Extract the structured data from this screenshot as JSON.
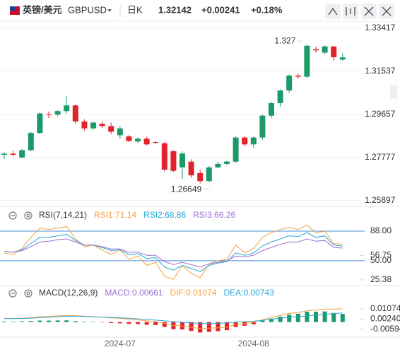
{
  "header": {
    "pair": "英镑/美元",
    "code": "GBPUSD",
    "period": "日K",
    "price": "1.32142",
    "change": "+0.00241",
    "change_pct": "+0.18%"
  },
  "chart_data": [
    {
      "type": "candlestick",
      "categories": [
        null,
        null,
        null,
        null,
        null,
        null,
        null,
        null,
        null,
        null,
        null,
        null,
        null,
        "2024-07",
        null,
        null,
        null,
        null,
        null,
        null,
        null,
        null,
        null,
        null,
        null,
        null,
        null,
        null,
        "2024-08",
        null,
        null,
        null,
        null,
        null,
        null,
        null,
        null,
        null,
        null
      ],
      "open": [
        1.279,
        1.2795,
        1.2778,
        1.281,
        1.2885,
        1.2968,
        1.2965,
        1.298,
        1.3005,
        1.2935,
        1.2905,
        1.2925,
        1.2915,
        1.2875,
        1.287,
        1.2848,
        1.286,
        1.2845,
        1.284,
        1.2805,
        1.2735,
        1.276,
        1.271,
        1.2675,
        1.2735,
        1.275,
        1.276,
        1.2865,
        1.2835,
        1.2865,
        1.296,
        1.3015,
        1.307,
        1.3135,
        1.313,
        1.325,
        1.3235,
        1.3262,
        1.3205
      ],
      "high": [
        1.28,
        1.2806,
        1.2815,
        1.289,
        1.2975,
        1.2978,
        1.2985,
        1.3045,
        1.301,
        1.2945,
        1.2935,
        1.2935,
        1.293,
        1.2915,
        1.2875,
        1.2865,
        1.2868,
        1.285,
        1.2845,
        1.281,
        1.2805,
        1.277,
        1.2725,
        1.274,
        1.276,
        1.2765,
        1.287,
        1.287,
        1.287,
        1.2965,
        1.302,
        1.3075,
        1.314,
        1.3145,
        1.327,
        1.3262,
        1.32665,
        1.3264,
        1.3232
      ],
      "low": [
        1.2772,
        1.2782,
        1.2775,
        1.2805,
        1.288,
        1.295,
        1.2958,
        1.297,
        1.2925,
        1.2895,
        1.29,
        1.2905,
        1.288,
        1.286,
        1.2845,
        1.284,
        1.283,
        1.2835,
        1.2718,
        1.2715,
        1.2685,
        1.269,
        1.26649,
        1.267,
        1.273,
        1.2745,
        1.2755,
        1.2825,
        1.282,
        1.2855,
        1.295,
        1.3,
        1.306,
        1.312,
        1.3125,
        1.3235,
        1.3228,
        1.32,
        1.32
      ],
      "close": [
        1.2795,
        1.279,
        1.281,
        1.2885,
        1.297,
        1.2965,
        1.298,
        1.3005,
        1.2935,
        1.2905,
        1.293,
        1.2915,
        1.289,
        1.2905,
        1.285,
        1.286,
        1.2835,
        1.2842,
        1.2725,
        1.272,
        1.2795,
        1.27,
        1.2675,
        1.2735,
        1.275,
        1.276,
        1.2865,
        1.2835,
        1.2865,
        1.296,
        1.3015,
        1.307,
        1.3135,
        1.313,
        1.3265,
        1.3245,
        1.3262,
        1.3215,
        1.32142
      ],
      "up_color": "#1b9a68",
      "down_color": "#e2232a",
      "ylim": [
        1.2571,
        1.3372
      ],
      "yticks": [
        1.33417,
        1.31537,
        1.29657,
        1.27777,
        1.25897
      ],
      "grid": true
    },
    {
      "type": "line",
      "title": "RSI(7,14,21)",
      "series": [
        {
          "name": "RSI1:71.14",
          "color": "#f5a13c",
          "values": [
            60,
            58,
            66,
            80,
            92,
            90,
            92,
            94,
            78,
            68,
            70,
            64,
            58,
            64,
            52,
            56,
            44,
            48,
            30,
            26,
            44,
            34,
            28,
            46,
            50,
            52,
            70,
            60,
            66,
            80,
            86,
            90,
            93,
            90,
            96,
            86,
            88,
            72,
            71.14
          ]
        },
        {
          "name": "RSI2:68.86",
          "color": "#26a6d6",
          "values": [
            62,
            61,
            64,
            72,
            80,
            80,
            82,
            84,
            76,
            70,
            70,
            67,
            63,
            64,
            58,
            59,
            53,
            54,
            42,
            38,
            44,
            40,
            36,
            44,
            47,
            49,
            60,
            57,
            60,
            69,
            74,
            78,
            82,
            81,
            86,
            80,
            82,
            70,
            68.86
          ]
        },
        {
          "name": "RSI3:66.26",
          "color": "#9c6fd6",
          "values": [
            62,
            61,
            63,
            68,
            74,
            75,
            77,
            78,
            74,
            70,
            70,
            68,
            65,
            65,
            61,
            61,
            57,
            57,
            49,
            45,
            48,
            45,
            42,
            46,
            48,
            50,
            56,
            55,
            57,
            63,
            67,
            71,
            74,
            74,
            78,
            75,
            76,
            67,
            66.26
          ]
        }
      ],
      "ylim": [
        17.2,
        98.9
      ],
      "yticks": [
        {
          "value": 88,
          "label": "88.00"
        },
        56.75,
        {
          "value": 50,
          "label": "50.00"
        },
        25.38
      ],
      "hlines": [
        88,
        50
      ],
      "hline_color": "#4a8fe0"
    },
    {
      "type": "combo",
      "title": "MACD(12,26,9)",
      "series": [
        {
          "name": "MACD:0.00661",
          "color": "#9c6fd6",
          "type": "bar",
          "up_color": "#1b9a68",
          "down_color": "#e2232a",
          "values": [
            0.0005,
            0.0004,
            0.0006,
            0.0008,
            0.0012,
            0.0012,
            0.0013,
            0.0014,
            0.0008,
            0.0004,
            0.0002,
            -0.0002,
            -0.0008,
            -0.001,
            -0.0014,
            -0.0016,
            -0.0022,
            -0.0024,
            -0.004,
            -0.0058,
            -0.006,
            -0.0072,
            -0.0085,
            -0.008,
            -0.0074,
            -0.0066,
            -0.004,
            -0.003,
            -0.0018,
            0.0012,
            0.0028,
            0.0044,
            0.006,
            0.0068,
            0.0084,
            0.0084,
            0.0086,
            0.0074,
            0.00661
          ]
        },
        {
          "name": "DIF:0.01074",
          "color": "#f5a13c",
          "type": "line",
          "values": [
            0.003,
            0.003,
            0.0032,
            0.0036,
            0.0042,
            0.0046,
            0.005,
            0.0054,
            0.0052,
            0.0048,
            0.0044,
            0.004,
            0.0034,
            0.003,
            0.0024,
            0.0018,
            0.001,
            0.0004,
            -0.001,
            -0.0026,
            -0.0032,
            -0.0042,
            -0.0052,
            -0.005,
            -0.0046,
            -0.004,
            -0.002,
            -0.0012,
            -0.0002,
            0.002,
            0.0038,
            0.0054,
            0.007,
            0.0078,
            0.0092,
            0.0098,
            0.0106,
            0.0106,
            0.01074
          ]
        },
        {
          "name": "DEA:0.00743",
          "color": "#26a6d6",
          "type": "line",
          "values": [
            0.0028,
            0.0028,
            0.0029,
            0.0032,
            0.0036,
            0.004,
            0.0044,
            0.0047,
            0.0048,
            0.0046,
            0.0043,
            0.0041,
            0.0038,
            0.0035,
            0.0031,
            0.0026,
            0.0021,
            0.0016,
            0.001,
            0.0003,
            -0.0002,
            -0.0006,
            -0.001,
            -0.001,
            -0.0009,
            -0.0007,
            -0.0001,
            0.0003,
            0.0007,
            0.0014,
            0.0024,
            0.0032,
            0.004,
            0.0044,
            0.005,
            0.0056,
            0.0063,
            0.0069,
            0.00743
          ]
        }
      ],
      "ylim": [
        -0.0117,
        0.0205
      ],
      "yticks": [
        0.01074,
        {
          "value": 0.0024,
          "label": "0.00240"
        },
        -0.00594
      ]
    }
  ]
}
